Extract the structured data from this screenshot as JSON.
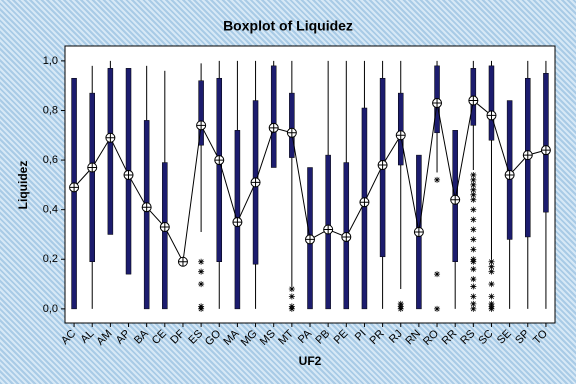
{
  "chart_data": {
    "type": "boxplot",
    "title": "Boxplot of Liquidez",
    "x_label": "UF2",
    "y_label": "Liquidez",
    "categories": [
      "AC",
      "AL",
      "AM",
      "AP",
      "BA",
      "CE",
      "DF",
      "ES",
      "GO",
      "MA",
      "MG",
      "MS",
      "MT",
      "PA",
      "PB",
      "PE",
      "PI",
      "PR",
      "RJ",
      "RN",
      "RO",
      "RR",
      "RS",
      "SC",
      "SE",
      "SP",
      "TO"
    ],
    "boxes": [
      {
        "low": 0,
        "q1": 0,
        "q3": 0.93,
        "high": 0.93
      },
      {
        "low": 0,
        "q1": 0.19,
        "q3": 0.87,
        "high": 0.98
      },
      {
        "low": 0.3,
        "q1": 0.3,
        "q3": 0.97,
        "high": 1.0
      },
      {
        "low": 0.14,
        "q1": 0.14,
        "q3": 0.97,
        "high": 0.97
      },
      {
        "low": 0,
        "q1": 0,
        "q3": 0.76,
        "high": 0.98
      },
      {
        "low": 0,
        "q1": 0,
        "q3": 0.59,
        "high": 0.96
      },
      {
        "low": 0.19,
        "q1": 0.19,
        "q3": 0.19,
        "high": 0.19
      },
      {
        "low": 0.31,
        "q1": 0.66,
        "q3": 0.92,
        "high": 0.99
      },
      {
        "low": 0,
        "q1": 0.19,
        "q3": 0.93,
        "high": 1.0
      },
      {
        "low": 0,
        "q1": 0,
        "q3": 0.72,
        "high": 1.0
      },
      {
        "low": 0,
        "q1": 0.18,
        "q3": 0.84,
        "high": 1.0
      },
      {
        "low": 0.57,
        "q1": 0.57,
        "q3": 0.98,
        "high": 1.0
      },
      {
        "low": 0.09,
        "q1": 0.61,
        "q3": 0.87,
        "high": 1.0
      },
      {
        "low": 0,
        "q1": 0,
        "q3": 0.57,
        "high": 0.57
      },
      {
        "low": 0,
        "q1": 0,
        "q3": 0.62,
        "high": 1.0
      },
      {
        "low": 0,
        "q1": 0,
        "q3": 0.59,
        "high": 1.0
      },
      {
        "low": 0,
        "q1": 0,
        "q3": 0.81,
        "high": 1.0
      },
      {
        "low": 0,
        "q1": 0.21,
        "q3": 0.93,
        "high": 1.0
      },
      {
        "low": 0.08,
        "q1": 0.58,
        "q3": 0.87,
        "high": 1.0
      },
      {
        "low": 0,
        "q1": 0,
        "q3": 0.62,
        "high": 0.62
      },
      {
        "low": 0.55,
        "q1": 0.71,
        "q3": 0.98,
        "high": 1.0
      },
      {
        "low": 0,
        "q1": 0.19,
        "q3": 0.72,
        "high": 0.72
      },
      {
        "low": 0.56,
        "q1": 0.74,
        "q3": 0.97,
        "high": 1.0
      },
      {
        "low": 0.2,
        "q1": 0.68,
        "q3": 0.98,
        "high": 1.0
      },
      {
        "low": 0,
        "q1": 0.28,
        "q3": 0.84,
        "high": 0.84
      },
      {
        "low": 0,
        "q1": 0.29,
        "q3": 0.93,
        "high": 1.0
      },
      {
        "low": 0,
        "q1": 0.39,
        "q3": 0.95,
        "high": 1.0
      }
    ],
    "means": [
      0.49,
      0.57,
      0.69,
      0.54,
      0.41,
      0.33,
      0.19,
      0.74,
      0.6,
      0.35,
      0.51,
      0.73,
      0.71,
      0.28,
      0.32,
      0.29,
      0.43,
      0.58,
      0.7,
      0.31,
      0.83,
      0.44,
      0.84,
      0.78,
      0.54,
      0.62,
      0.64
    ],
    "outliers": [
      [],
      [],
      [],
      [],
      [],
      [],
      [],
      [
        0.19,
        0.15,
        0.1,
        0.01,
        0.0
      ],
      [],
      [],
      [],
      [],
      [
        0.08,
        0.05,
        0.01,
        0.0
      ],
      [],
      [],
      [],
      [],
      [],
      [
        0.02,
        0.01,
        0.0
      ],
      [],
      [
        0.52,
        0.14,
        0.0
      ],
      [],
      [
        0.54,
        0.52,
        0.5,
        0.48,
        0.46,
        0.44,
        0.4,
        0.36,
        0.32,
        0.28,
        0.24,
        0.2,
        0.19,
        0.16,
        0.12,
        0.09,
        0.05,
        0.02,
        0.0
      ],
      [
        0.19,
        0.17,
        0.15,
        0.1,
        0.05,
        0.02,
        0.01,
        0.0
      ],
      [],
      [],
      []
    ],
    "box_color": "#1c1c6e",
    "mean_color": "#000000",
    "ylim": [
      -0.057,
      1.06
    ],
    "yticks": [
      {
        "value": 0,
        "label": "0,0"
      },
      {
        "value": 0.2,
        "label": "0,2"
      },
      {
        "value": 0.4,
        "label": "0,4"
      },
      {
        "value": 0.6,
        "label": "0,6"
      },
      {
        "value": 0.8,
        "label": "0,8"
      },
      {
        "value": 1.0,
        "label": "1,0"
      }
    ]
  }
}
